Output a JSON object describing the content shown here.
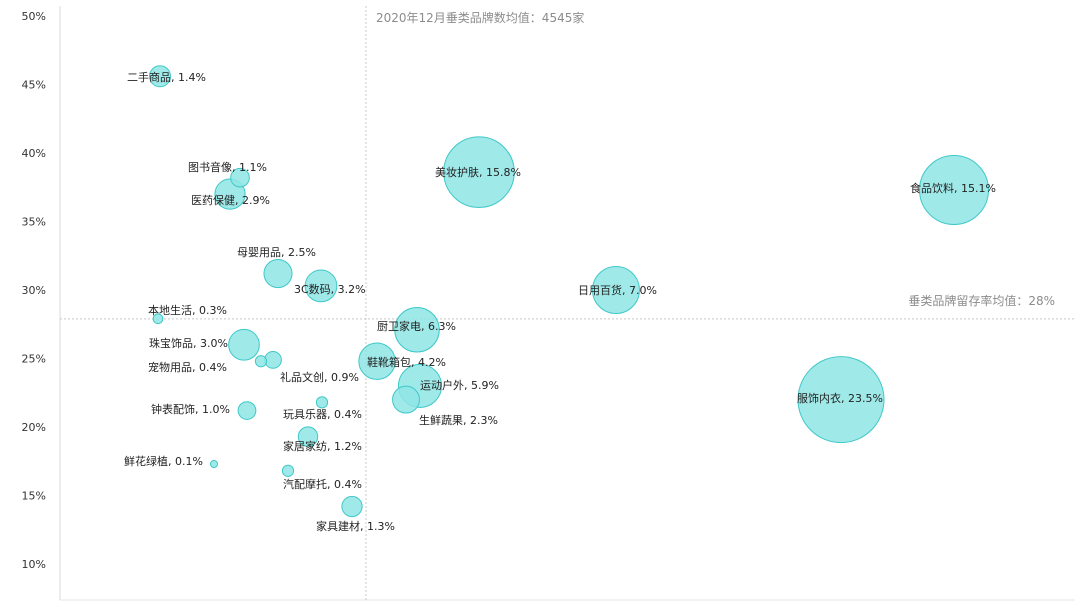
{
  "chart_data": {
    "type": "scatter",
    "title": "",
    "xlabel": "",
    "ylabel": "",
    "y_ticks": [
      "50%",
      "45%",
      "40%",
      "35%",
      "30%",
      "25%",
      "20%",
      "15%",
      "10%"
    ],
    "ylim": [
      8.5,
      51
    ],
    "reference_lines": {
      "vertical_label": "2020年12月垂类品牌数均值：4545家",
      "horizontal_label": "垂类品牌留存率均值：28%",
      "horizontal_value": 28
    },
    "bubble_color": "#8fe5e5",
    "bubble_stroke": "#3fc8c8",
    "points": [
      {
        "name": "二手商品",
        "share": "1.4%",
        "share_value": 1.4,
        "y": 45.6
      },
      {
        "name": "图书音像",
        "share": "1.1%",
        "share_value": 1.1,
        "y": 38.2
      },
      {
        "name": "医药保健",
        "share": "2.9%",
        "share_value": 2.9,
        "y": 37.0
      },
      {
        "name": "母婴用品",
        "share": "2.5%",
        "share_value": 2.5,
        "y": 31.2
      },
      {
        "name": "3C数码",
        "share": "3.2%",
        "share_value": 3.2,
        "y": 30.3
      },
      {
        "name": "本地生活",
        "share": "0.3%",
        "share_value": 0.3,
        "y": 27.9
      },
      {
        "name": "珠宝饰品",
        "share": "3.0%",
        "share_value": 3.0,
        "y": 26.0
      },
      {
        "name": "宠物用品",
        "share": "0.4%",
        "share_value": 0.4,
        "y": 24.8
      },
      {
        "name": "礼品文创",
        "share": "0.9%",
        "share_value": 0.9,
        "y": 24.9
      },
      {
        "name": "钟表配饰",
        "share": "1.0%",
        "share_value": 1.0,
        "y": 21.2
      },
      {
        "name": "玩具乐器",
        "share": "0.4%",
        "share_value": 0.4,
        "y": 21.8
      },
      {
        "name": "家居家纺",
        "share": "1.2%",
        "share_value": 1.2,
        "y": 19.3
      },
      {
        "name": "鲜花绿植",
        "share": "0.1%",
        "share_value": 0.1,
        "y": 17.3
      },
      {
        "name": "汽配摩托",
        "share": "0.4%",
        "share_value": 0.4,
        "y": 16.8
      },
      {
        "name": "家具建材",
        "share": "1.3%",
        "share_value": 1.3,
        "y": 14.2
      },
      {
        "name": "美妆护肤",
        "share": "15.8%",
        "share_value": 15.8,
        "y": 38.6
      },
      {
        "name": "厨卫家电",
        "share": "6.3%",
        "share_value": 6.3,
        "y": 27.1
      },
      {
        "name": "鞋靴箱包",
        "share": "4.2%",
        "share_value": 4.2,
        "y": 24.8
      },
      {
        "name": "运动户外",
        "share": "5.9%",
        "share_value": 5.9,
        "y": 23.0
      },
      {
        "name": "生鲜蔬果",
        "share": "2.3%",
        "share_value": 2.3,
        "y": 22.0
      },
      {
        "name": "日用百货",
        "share": "7.0%",
        "share_value": 7.0,
        "y": 30.0
      },
      {
        "name": "食品饮料",
        "share": "15.1%",
        "share_value": 15.1,
        "y": 37.3
      },
      {
        "name": "服饰内衣",
        "share": "23.5%",
        "share_value": 23.5,
        "y": 22.0
      }
    ]
  }
}
